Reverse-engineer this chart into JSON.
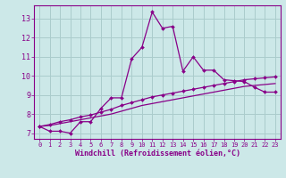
{
  "xlabel": "Windchill (Refroidissement éolien,°C)",
  "bg_color": "#cce8e8",
  "grid_color": "#aacccc",
  "line_color": "#880088",
  "xlim": [
    -0.5,
    23.5
  ],
  "ylim": [
    6.7,
    13.7
  ],
  "yticks": [
    7,
    8,
    9,
    10,
    11,
    12,
    13
  ],
  "xticks": [
    0,
    1,
    2,
    3,
    4,
    5,
    6,
    7,
    8,
    9,
    10,
    11,
    12,
    13,
    14,
    15,
    16,
    17,
    18,
    19,
    20,
    21,
    22,
    23
  ],
  "curve1_x": [
    0,
    1,
    2,
    3,
    4,
    5,
    6,
    7,
    8,
    9,
    10,
    11,
    12,
    13,
    14,
    15,
    16,
    17,
    18,
    19,
    20,
    21,
    22,
    23
  ],
  "curve1_y": [
    7.35,
    7.1,
    7.1,
    7.0,
    7.6,
    7.6,
    8.3,
    8.85,
    8.85,
    10.9,
    11.5,
    13.35,
    12.5,
    12.6,
    10.25,
    11.0,
    10.3,
    10.3,
    9.8,
    9.75,
    9.7,
    9.4,
    9.15,
    9.15
  ],
  "curve2_x": [
    0,
    1,
    2,
    3,
    4,
    5,
    6,
    7,
    8,
    9,
    10,
    11,
    12,
    13,
    14,
    15,
    16,
    17,
    18,
    19,
    20,
    21,
    22,
    23
  ],
  "curve2_y": [
    7.35,
    7.4,
    7.5,
    7.6,
    7.7,
    7.8,
    7.9,
    8.0,
    8.15,
    8.3,
    8.45,
    8.55,
    8.65,
    8.75,
    8.85,
    8.95,
    9.05,
    9.15,
    9.25,
    9.35,
    9.45,
    9.5,
    9.55,
    9.6
  ],
  "curve3_x": [
    0,
    1,
    2,
    3,
    4,
    5,
    6,
    7,
    8,
    9,
    10,
    11,
    12,
    13,
    14,
    15,
    16,
    17,
    18,
    19,
    20,
    21,
    22,
    23
  ],
  "curve3_y": [
    7.35,
    7.45,
    7.6,
    7.7,
    7.85,
    7.95,
    8.1,
    8.25,
    8.45,
    8.6,
    8.75,
    8.9,
    9.0,
    9.1,
    9.2,
    9.3,
    9.4,
    9.5,
    9.6,
    9.7,
    9.8,
    9.85,
    9.9,
    9.95
  ]
}
